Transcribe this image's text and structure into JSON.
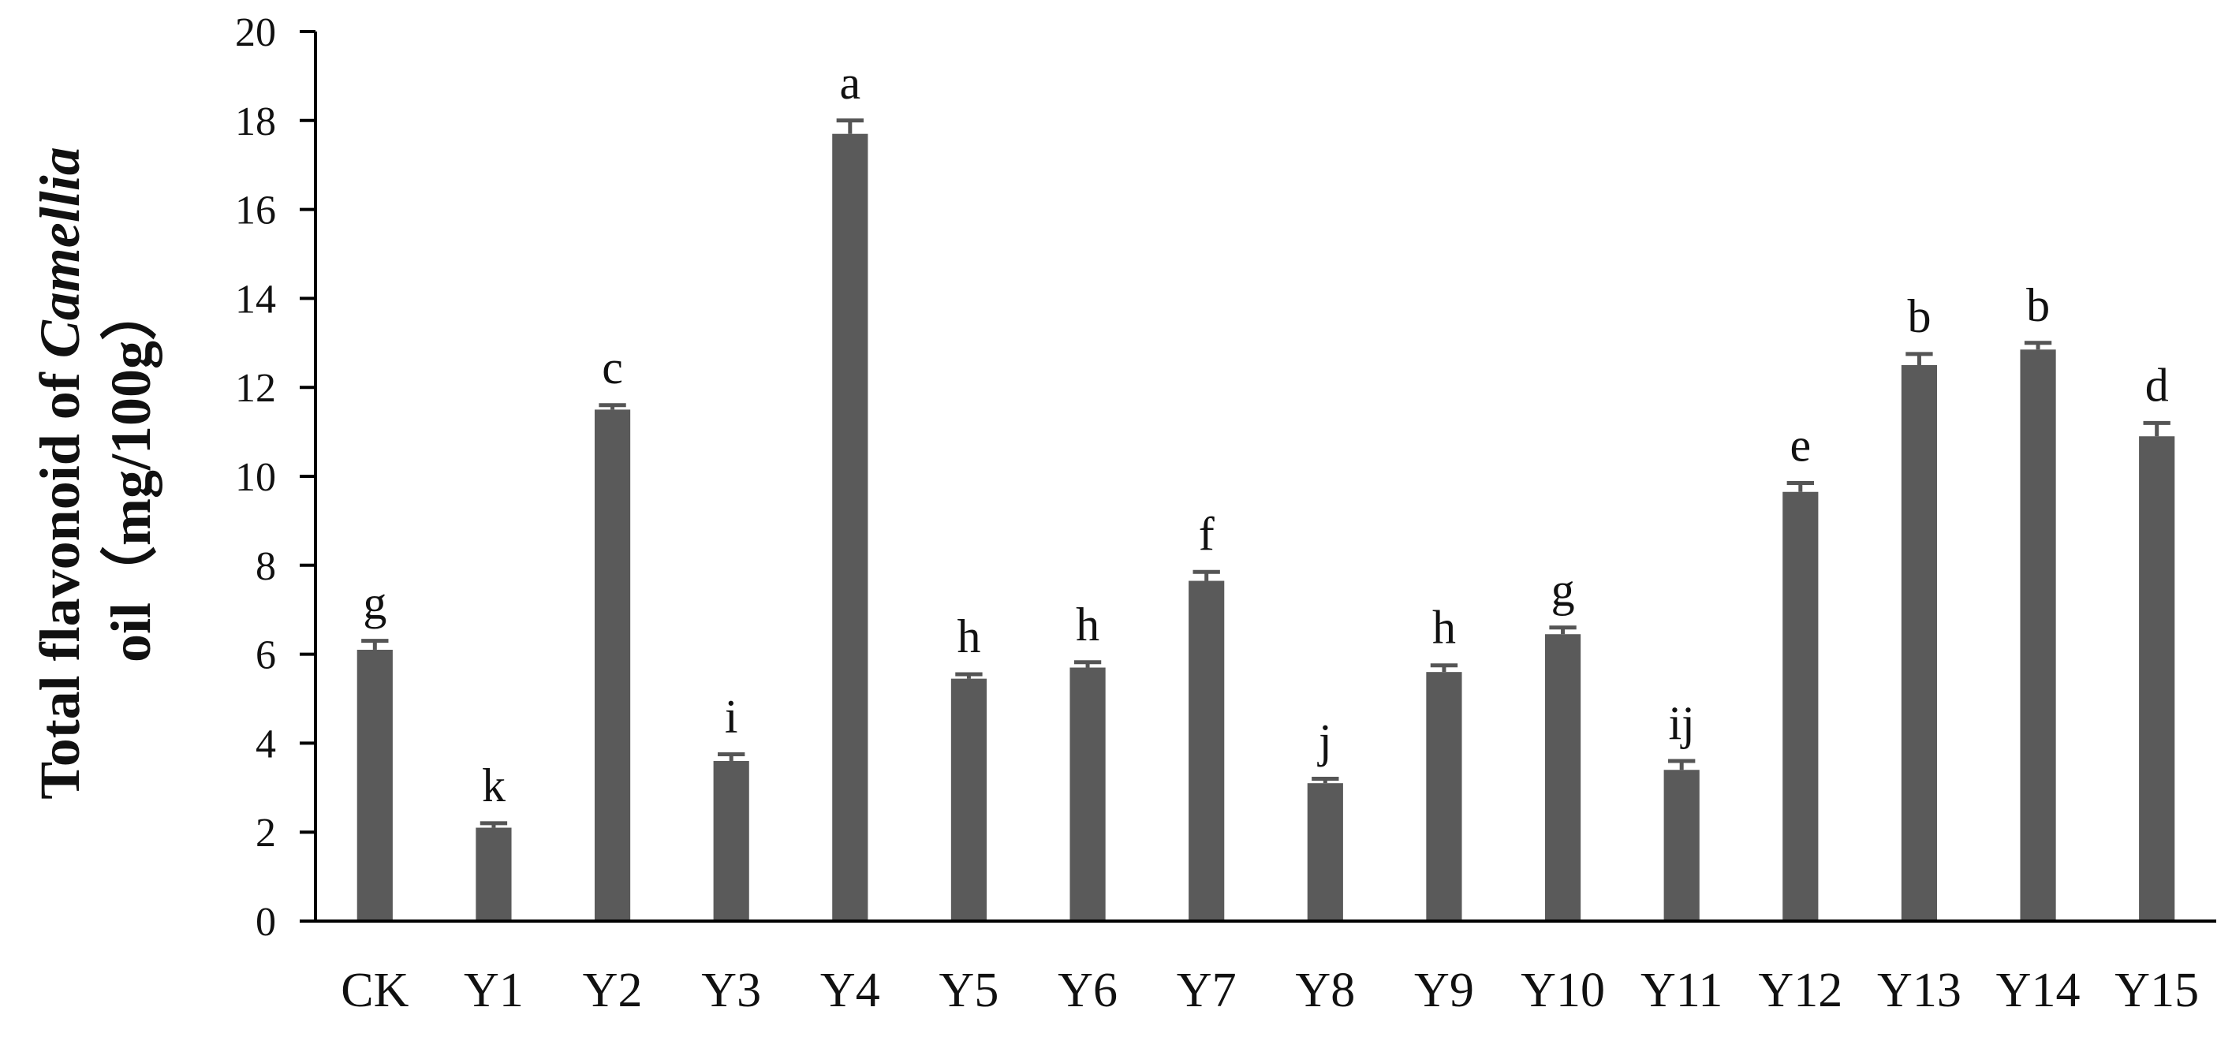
{
  "chart_data": {
    "type": "bar",
    "categories": [
      "CK",
      "Y1",
      "Y2",
      "Y3",
      "Y4",
      "Y5",
      "Y6",
      "Y7",
      "Y8",
      "Y9",
      "Y10",
      "Y11",
      "Y12",
      "Y13",
      "Y14",
      "Y15"
    ],
    "series": [
      {
        "values": [
          6.1,
          2.1,
          11.5,
          3.6,
          17.7,
          5.45,
          5.7,
          7.65,
          3.1,
          5.6,
          6.45,
          3.4,
          9.65,
          12.5,
          12.85,
          10.9
        ],
        "errors": [
          0.2,
          0.1,
          0.1,
          0.15,
          0.3,
          0.1,
          0.12,
          0.2,
          0.1,
          0.15,
          0.15,
          0.2,
          0.2,
          0.25,
          0.15,
          0.3
        ]
      }
    ],
    "significance_labels": [
      "g",
      "k",
      "c",
      "i",
      "a",
      "h",
      "h",
      "f",
      "j",
      "h",
      "g",
      "ij",
      "e",
      "b",
      "b",
      "d"
    ],
    "yticks": [
      "0",
      "2",
      "4",
      "6",
      "8",
      "10",
      "12",
      "14",
      "16",
      "18",
      "20"
    ],
    "ylim": [
      0,
      20
    ],
    "ylabel_line1_prefix": "Total flavonoid of ",
    "ylabel_line1_italic": "Camellia",
    "ylabel_line2": "oil（mg/100g）",
    "xlabel": "",
    "grid": false,
    "colors": {
      "bar": "#5a5a5a",
      "error_bar": "#555555",
      "axis": "#000000"
    }
  }
}
